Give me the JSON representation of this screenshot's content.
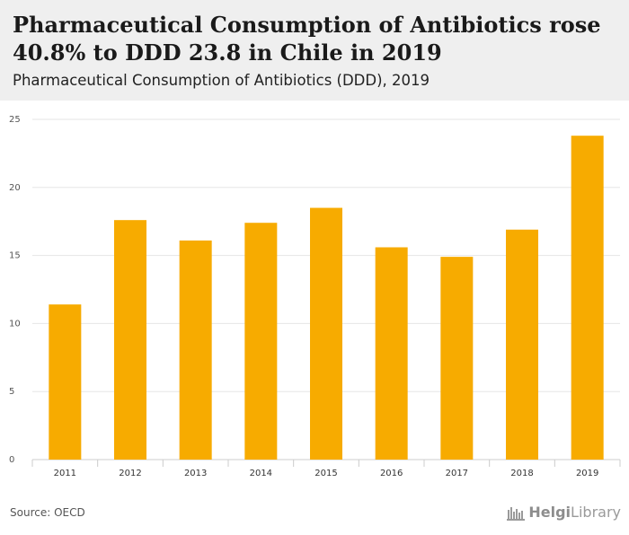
{
  "header": {
    "title": "Pharmaceutical Consumption of Antibiotics rose 40.8% to DDD 23.8 in Chile in 2019",
    "subtitle": "Pharmaceutical Consumption of Antibiotics (DDD), 2019"
  },
  "footer": {
    "source": "Source: OECD",
    "logo_bold": "Helgi",
    "logo_rest": "Library"
  },
  "colors": {
    "bar": "#f7ab00",
    "grid": "#e6e6e6",
    "header_bg": "#efefef"
  },
  "icons": {
    "logo": "factory-building-icon"
  },
  "chart_data": {
    "type": "bar",
    "categories": [
      "2011",
      "2012",
      "2013",
      "2014",
      "2015",
      "2016",
      "2017",
      "2018",
      "2019"
    ],
    "values": [
      11.4,
      17.6,
      16.1,
      17.4,
      18.5,
      15.6,
      14.9,
      16.9,
      23.8
    ],
    "yticks": [
      0,
      5,
      10,
      15,
      20,
      25
    ],
    "ylim": [
      0,
      25
    ],
    "title": "Pharmaceutical Consumption of Antibiotics rose 40.8% to DDD 23.8 in Chile in 2019",
    "subtitle": "Pharmaceutical Consumption of Antibiotics (DDD), 2019",
    "xlabel": "",
    "ylabel": "",
    "grid": true,
    "legend": "none"
  }
}
